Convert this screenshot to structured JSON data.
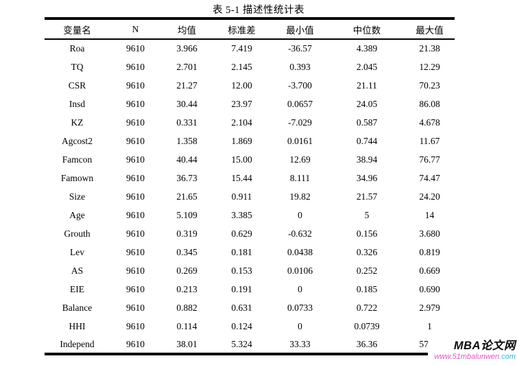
{
  "title": "表 5-1 描述性统计表",
  "table": {
    "headers": [
      "变量名",
      "N",
      "均值",
      "标准差",
      "最小值",
      "中位数",
      "最大值"
    ],
    "rows": [
      [
        "Roa",
        "9610",
        "3.966",
        "7.419",
        "-36.57",
        "4.389",
        "21.38"
      ],
      [
        "TQ",
        "9610",
        "2.701",
        "2.145",
        "0.393",
        "2.045",
        "12.29"
      ],
      [
        "CSR",
        "9610",
        "21.27",
        "12.00",
        "-3.700",
        "21.11",
        "70.23"
      ],
      [
        "Insd",
        "9610",
        "30.44",
        "23.97",
        "0.0657",
        "24.05",
        "86.08"
      ],
      [
        "KZ",
        "9610",
        "0.331",
        "2.104",
        "-7.029",
        "0.587",
        "4.678"
      ],
      [
        "Agcost2",
        "9610",
        "1.358",
        "1.869",
        "0.0161",
        "0.744",
        "11.67"
      ],
      [
        "Famcon",
        "9610",
        "40.44",
        "15.00",
        "12.69",
        "38.94",
        "76.77"
      ],
      [
        "Famown",
        "9610",
        "36.73",
        "15.44",
        "8.111",
        "34.96",
        "74.47"
      ],
      [
        "Size",
        "9610",
        "21.65",
        "0.911",
        "19.82",
        "21.57",
        "24.20"
      ],
      [
        "Age",
        "9610",
        "5.109",
        "3.385",
        "0",
        "5",
        "14"
      ],
      [
        "Grouth",
        "9610",
        "0.319",
        "0.629",
        "-0.632",
        "0.156",
        "3.680"
      ],
      [
        "Lev",
        "9610",
        "0.345",
        "0.181",
        "0.0438",
        "0.326",
        "0.819"
      ],
      [
        "AS",
        "9610",
        "0.269",
        "0.153",
        "0.0106",
        "0.252",
        "0.669"
      ],
      [
        "EIE",
        "9610",
        "0.213",
        "0.191",
        "0",
        "0.185",
        "0.690"
      ],
      [
        "Balance",
        "9610",
        "0.882",
        "0.631",
        "0.0733",
        "0.722",
        "2.979"
      ],
      [
        "HHI",
        "9610",
        "0.114",
        "0.124",
        "0",
        "0.0739",
        "1"
      ],
      [
        "Independ",
        "9610",
        "38.01",
        "5.324",
        "33.33",
        "36.36",
        "57.14"
      ]
    ]
  },
  "watermark": {
    "name": "MBA论文网",
    "url_prefix": "www.51mbalunwen",
    "url_suffix": ".com"
  },
  "colors": {
    "text": "#000000",
    "background": "#ffffff",
    "border": "#000000",
    "watermark_url_pink": "#e750c8",
    "watermark_url_cyan": "#2fb9dd"
  }
}
